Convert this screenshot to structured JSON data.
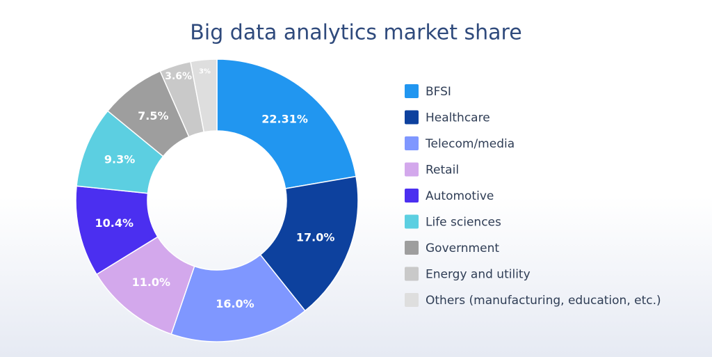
{
  "chart_data": {
    "type": "donut",
    "title": "Big data analytics market share",
    "categories": [
      "BFSI",
      "Healthcare",
      "Telecom/media",
      "Retail",
      "Automotive",
      "Life sciences",
      "Government",
      "Energy and utility",
      "Others (manufacturing, education, etc.)"
    ],
    "values": [
      22.31,
      17.0,
      16.0,
      11.0,
      10.4,
      9.3,
      7.5,
      3.6,
      3
    ],
    "value_labels": [
      "22.31%",
      "17.0%",
      "16.0%",
      "11.0%",
      "10.4%",
      "9.3%",
      "7.5%",
      "3.6%",
      "3%"
    ],
    "colors": [
      "#2196f0",
      "#0d419e",
      "#7f97ff",
      "#d3a8ec",
      "#4b2ff0",
      "#5ccfe1",
      "#9e9e9e",
      "#c9c9c9",
      "#dedede"
    ]
  }
}
